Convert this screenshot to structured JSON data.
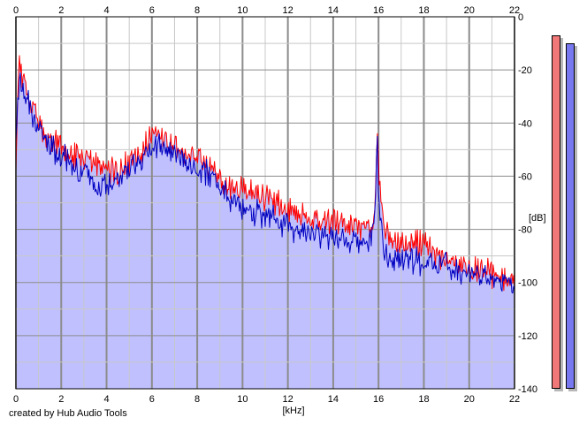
{
  "credit": "created by Hub Audio Tools",
  "colors": {
    "background": "#ffffff",
    "plot_fill": "#c0c0ff",
    "grid_major": "#8c8c8c",
    "grid_minor": "#c8c8c8",
    "channel_left": "#ff0000",
    "channel_right": "#0000c0",
    "meter_left": "#f07878",
    "meter_right": "#7878f0"
  },
  "meters": [
    {
      "name": "left-channel-level",
      "color": "#f07878",
      "level_db": -7
    },
    {
      "name": "right-channel-level",
      "color": "#7878f0",
      "level_db": -10
    }
  ],
  "chart_data": {
    "type": "line",
    "title": "",
    "xlabel": "[kHz]",
    "ylabel": "[dB]",
    "xlim": [
      0,
      22
    ],
    "ylim": [
      -140,
      0
    ],
    "x_ticks": [
      0,
      2,
      4,
      6,
      8,
      10,
      12,
      14,
      16,
      18,
      20,
      22
    ],
    "x_tick_labels": [
      "0",
      "2",
      "4",
      "6",
      "8",
      "10",
      "12",
      "14",
      "16",
      "18",
      "20",
      "22"
    ],
    "y_ticks": [
      0,
      -20,
      -40,
      -60,
      -80,
      -100,
      -120,
      -140
    ],
    "y_tick_labels": [
      "0",
      "-20",
      "-40",
      "-60",
      "-80",
      "-100",
      "-120",
      "-140"
    ],
    "grid": true,
    "legend": "none",
    "x_axis_position": "top and bottom",
    "y_axis_position": "right",
    "series": [
      {
        "color": "#ff0000",
        "x": [
          0,
          0.1,
          0.2,
          0.35,
          0.5,
          0.7,
          1,
          1.5,
          2,
          2.5,
          3,
          3.5,
          4,
          4.5,
          5,
          5.5,
          5.8,
          6,
          6.3,
          6.6,
          7,
          7.5,
          8,
          8.5,
          9,
          9.5,
          10,
          10.5,
          11,
          11.5,
          12,
          12.5,
          13,
          13.5,
          14,
          14.5,
          15,
          15.5,
          15.8,
          15.95,
          16,
          16.2,
          16.5,
          17,
          17.5,
          18,
          18.5,
          19,
          19.5,
          20,
          20.5,
          21,
          21.5,
          22
        ],
        "values": [
          -55,
          -22,
          -19,
          -24,
          -29,
          -33,
          -40,
          -47,
          -49,
          -53,
          -54,
          -55,
          -57,
          -59,
          -55,
          -52,
          -47,
          -44,
          -46,
          -47,
          -49,
          -51,
          -53,
          -57,
          -61,
          -65,
          -64,
          -66,
          -68,
          -70,
          -72,
          -74,
          -75,
          -76,
          -76,
          -78,
          -79,
          -80,
          -77,
          -46,
          -58,
          -77,
          -83,
          -85,
          -85,
          -86,
          -89,
          -91,
          -93,
          -94,
          -95,
          -97,
          -98,
          -100
        ]
      },
      {
        "color": "#0000c0",
        "x": [
          0,
          0.1,
          0.2,
          0.35,
          0.5,
          0.7,
          1,
          1.5,
          2,
          2.5,
          3,
          3.5,
          4,
          4.5,
          5,
          5.5,
          5.8,
          6,
          6.3,
          6.6,
          7,
          7.5,
          8,
          8.5,
          9,
          9.5,
          10,
          10.5,
          11,
          11.5,
          12,
          12.5,
          13,
          13.5,
          14,
          14.5,
          15,
          15.5,
          15.8,
          15.95,
          16,
          16.2,
          16.5,
          17,
          17.5,
          18,
          18.5,
          19,
          19.5,
          20,
          20.5,
          21,
          21.5,
          22
        ],
        "values": [
          -50,
          -27,
          -24,
          -28,
          -32,
          -37,
          -43,
          -49,
          -52,
          -56,
          -58,
          -62,
          -63,
          -61,
          -58,
          -55,
          -51,
          -48,
          -49,
          -50,
          -51,
          -54,
          -57,
          -60,
          -64,
          -68,
          -71,
          -73,
          -75,
          -76,
          -79,
          -80,
          -81,
          -82,
          -83,
          -84,
          -84,
          -85,
          -80,
          -49,
          -65,
          -88,
          -91,
          -91,
          -92,
          -92,
          -93,
          -94,
          -95,
          -96,
          -97,
          -98,
          -99,
          -101
        ]
      }
    ]
  }
}
